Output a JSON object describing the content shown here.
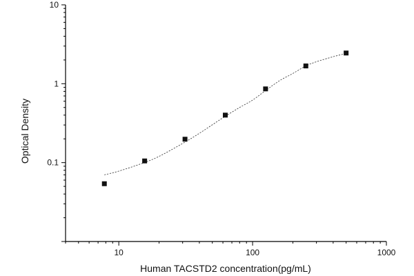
{
  "chart_data": {
    "type": "scatter",
    "title": "",
    "xlabel": "Human TACSTD2 concentration(pg/mL)",
    "ylabel": "Optical Density",
    "x_scale": "log",
    "y_scale": "log",
    "xlim": [
      4,
      1000
    ],
    "ylim": [
      0.01,
      10
    ],
    "x_ticks": [
      10,
      100,
      1000
    ],
    "x_tick_labels": [
      "10",
      "100",
      "1000"
    ],
    "y_ticks": [
      0.1,
      1,
      10
    ],
    "y_tick_labels": [
      "0.1",
      "1",
      "10"
    ],
    "grid": false,
    "legend": "none",
    "series": [
      {
        "marker": "square",
        "x": [
          7.8,
          15.6,
          31.25,
          62.5,
          125,
          250,
          500
        ],
        "y": [
          0.054,
          0.105,
          0.198,
          0.4,
          0.86,
          1.68,
          2.45
        ]
      }
    ],
    "fit_curve": {
      "style": "dotted",
      "x": [
        7.8,
        10,
        15,
        20,
        30,
        40,
        60,
        80,
        100,
        130,
        160,
        200,
        250,
        300,
        400,
        500
      ],
      "y": [
        0.07,
        0.078,
        0.098,
        0.12,
        0.175,
        0.235,
        0.37,
        0.5,
        0.62,
        0.86,
        1.1,
        1.35,
        1.68,
        1.9,
        2.2,
        2.42
      ]
    },
    "colors": {
      "axis": "#000000",
      "marker": "#111111",
      "fit": "#333333"
    }
  }
}
